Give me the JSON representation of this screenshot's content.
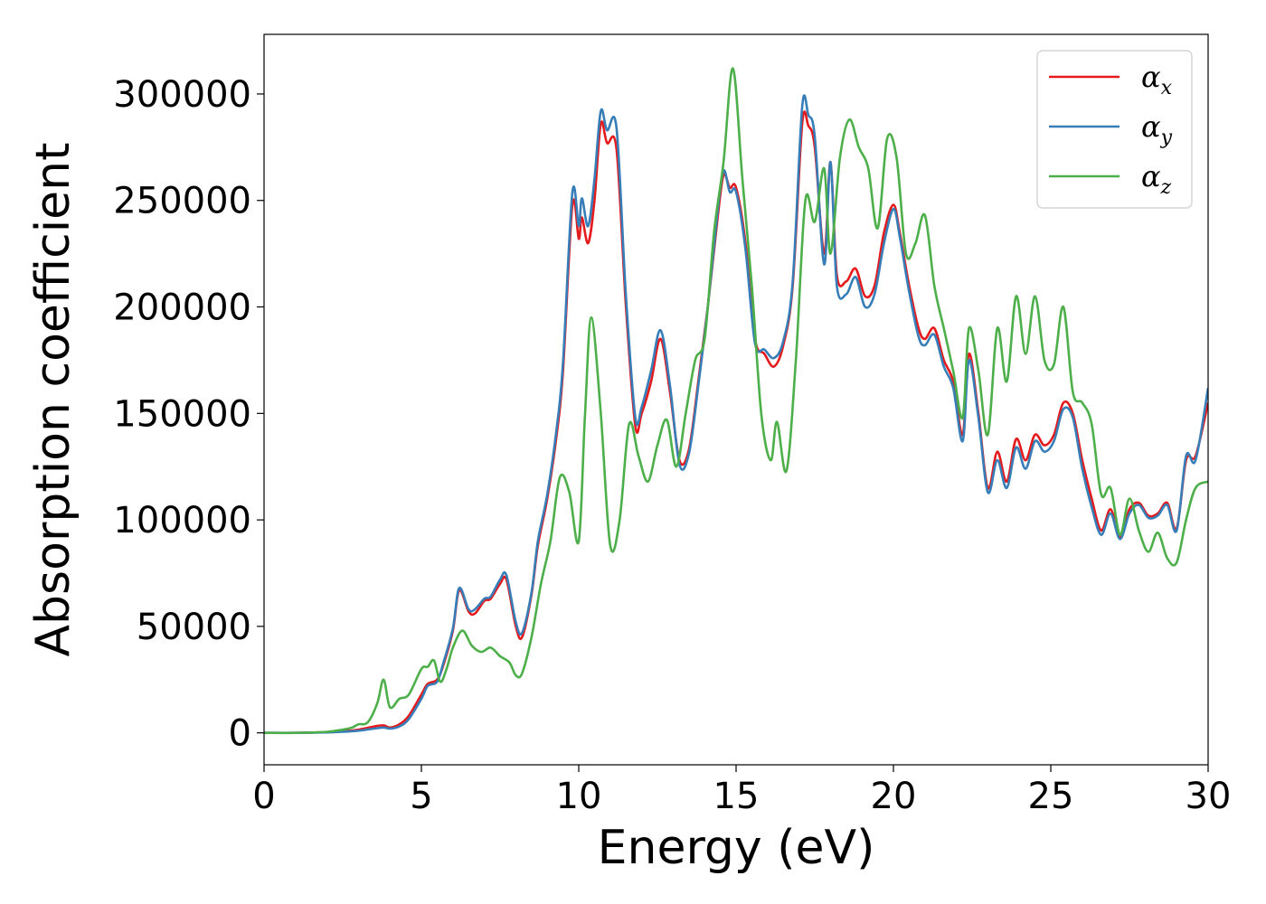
{
  "chart_data": {
    "type": "line",
    "title": "",
    "xlabel": "Energy (eV)",
    "ylabel": "Absorption coefficient",
    "xlim": [
      0,
      30
    ],
    "ylim": [
      -15000,
      328000
    ],
    "xticks": [
      0,
      5,
      10,
      15,
      20,
      25,
      30
    ],
    "yticks": [
      0,
      50000,
      100000,
      150000,
      200000,
      250000,
      300000
    ],
    "grid": false,
    "legend_position": "top-right",
    "series": [
      {
        "name": "α",
        "subscript": "x",
        "color": "#e41a1c",
        "x": [
          0,
          1,
          2,
          2.5,
          3,
          3.5,
          3.8,
          4,
          4.3,
          4.6,
          5,
          5.2,
          5.5,
          5.7,
          6,
          6.2,
          6.5,
          6.7,
          7,
          7.2,
          7.5,
          7.7,
          8,
          8.2,
          8.5,
          8.7,
          9,
          9.3,
          9.5,
          9.8,
          10,
          10.1,
          10.3,
          10.5,
          10.7,
          10.9,
          11.2,
          11.5,
          11.8,
          12,
          12.3,
          12.6,
          12.9,
          13.2,
          13.5,
          13.8,
          14.1,
          14.4,
          14.6,
          14.8,
          15,
          15.3,
          15.6,
          15.9,
          16.2,
          16.5,
          16.8,
          17.1,
          17.3,
          17.5,
          17.8,
          18,
          18.2,
          18.5,
          18.8,
          19.1,
          19.4,
          19.7,
          20,
          20.2,
          20.5,
          20.8,
          21,
          21.3,
          21.6,
          21.9,
          22.2,
          22.4,
          22.7,
          23,
          23.3,
          23.6,
          23.9,
          24.2,
          24.5,
          24.8,
          25.1,
          25.4,
          25.7,
          26,
          26.3,
          26.6,
          26.9,
          27.2,
          27.5,
          27.8,
          28.1,
          28.4,
          28.7,
          29,
          29.3,
          29.6,
          30
        ],
        "y": [
          0,
          0,
          300,
          700,
          1500,
          3000,
          3500,
          2500,
          4000,
          8000,
          18000,
          23000,
          25000,
          32000,
          48000,
          67000,
          57000,
          56000,
          62000,
          63000,
          70000,
          72000,
          50000,
          45000,
          65000,
          88000,
          110000,
          140000,
          170000,
          248000,
          232000,
          242000,
          230000,
          250000,
          286000,
          277000,
          274000,
          200000,
          144000,
          150000,
          165000,
          185000,
          160000,
          128000,
          133000,
          165000,
          200000,
          240000,
          262000,
          256000,
          256000,
          230000,
          185000,
          178000,
          172000,
          182000,
          210000,
          286000,
          285000,
          275000,
          225000,
          268000,
          215000,
          212000,
          218000,
          205000,
          210000,
          235000,
          248000,
          235000,
          210000,
          190000,
          185000,
          190000,
          175000,
          165000,
          140000,
          178000,
          150000,
          115000,
          132000,
          118000,
          138000,
          128000,
          140000,
          135000,
          140000,
          155000,
          150000,
          128000,
          110000,
          95000,
          105000,
          92000,
          105000,
          108000,
          102000,
          103000,
          108000,
          96000,
          128000,
          130000,
          155000
        ]
      },
      {
        "name": "α",
        "subscript": "y",
        "color": "#377eb8",
        "x": [
          0,
          1,
          2,
          2.5,
          3,
          3.5,
          3.8,
          4,
          4.3,
          4.6,
          5,
          5.2,
          5.5,
          5.7,
          6,
          6.2,
          6.5,
          6.7,
          7,
          7.2,
          7.5,
          7.7,
          8,
          8.2,
          8.5,
          8.7,
          9,
          9.3,
          9.5,
          9.8,
          10,
          10.1,
          10.3,
          10.5,
          10.7,
          10.9,
          11.2,
          11.5,
          11.8,
          12,
          12.3,
          12.6,
          12.9,
          13.2,
          13.5,
          13.8,
          14.1,
          14.4,
          14.6,
          14.8,
          15,
          15.3,
          15.6,
          15.9,
          16.2,
          16.5,
          16.8,
          17.1,
          17.3,
          17.5,
          17.8,
          18,
          18.2,
          18.5,
          18.8,
          19.1,
          19.4,
          19.7,
          20,
          20.2,
          20.5,
          20.8,
          21,
          21.3,
          21.6,
          21.9,
          22.2,
          22.4,
          22.7,
          23,
          23.3,
          23.6,
          23.9,
          24.2,
          24.5,
          24.8,
          25.1,
          25.4,
          25.7,
          26,
          26.3,
          26.6,
          26.9,
          27.2,
          27.5,
          27.8,
          28.1,
          28.4,
          28.7,
          29,
          29.3,
          29.6,
          30
        ],
        "y": [
          0,
          0,
          200,
          500,
          1000,
          2000,
          2500,
          2000,
          3000,
          6500,
          16000,
          22000,
          24000,
          33000,
          49000,
          68000,
          58000,
          58000,
          63000,
          64000,
          72000,
          74000,
          52000,
          47000,
          66000,
          90000,
          112000,
          143000,
          174000,
          254000,
          238000,
          251000,
          238000,
          260000,
          292000,
          283000,
          284000,
          205000,
          148000,
          153000,
          170000,
          189000,
          163000,
          126000,
          131000,
          163000,
          200000,
          243000,
          264000,
          254000,
          254000,
          227000,
          183000,
          180000,
          176000,
          184000,
          212000,
          294000,
          290000,
          280000,
          220000,
          268000,
          210000,
          206000,
          214000,
          200000,
          206000,
          230000,
          246000,
          233000,
          207000,
          186000,
          182000,
          187000,
          172000,
          162000,
          137000,
          175000,
          148000,
          113000,
          128000,
          115000,
          134000,
          124000,
          137000,
          132000,
          137000,
          152000,
          148000,
          124000,
          106000,
          93000,
          103000,
          91000,
          103000,
          107000,
          101000,
          102000,
          107000,
          95000,
          130000,
          128000,
          162000
        ]
      },
      {
        "name": "α",
        "subscript": "z",
        "color": "#4daf4a",
        "x": [
          0,
          1,
          2,
          2.5,
          2.8,
          3,
          3.3,
          3.6,
          3.8,
          4,
          4.3,
          4.6,
          5,
          5.2,
          5.4,
          5.6,
          5.8,
          6,
          6.3,
          6.6,
          6.9,
          7.2,
          7.5,
          7.8,
          8,
          8.2,
          8.5,
          8.8,
          9.1,
          9.4,
          9.7,
          10,
          10.2,
          10.4,
          10.7,
          11,
          11.3,
          11.6,
          11.9,
          12.2,
          12.5,
          12.8,
          13.1,
          13.4,
          13.7,
          14,
          14.3,
          14.6,
          14.9,
          15.2,
          15.5,
          15.8,
          16.1,
          16.3,
          16.6,
          16.9,
          17.2,
          17.5,
          17.8,
          18.0,
          18.3,
          18.6,
          18.9,
          19.2,
          19.5,
          19.8,
          20.1,
          20.4,
          20.7,
          21,
          21.3,
          21.6,
          21.9,
          22.2,
          22.4,
          22.7,
          23,
          23.3,
          23.6,
          23.9,
          24.2,
          24.5,
          24.8,
          25.1,
          25.4,
          25.7,
          26,
          26.3,
          26.6,
          26.9,
          27.2,
          27.5,
          27.8,
          28.1,
          28.4,
          28.7,
          29,
          29.3,
          29.6,
          30
        ],
        "y": [
          0,
          0,
          500,
          1500,
          2500,
          4000,
          5000,
          14000,
          25000,
          12000,
          16000,
          18000,
          30000,
          31000,
          34000,
          24000,
          30000,
          40000,
          48000,
          41000,
          38000,
          40000,
          36000,
          33000,
          27000,
          28000,
          45000,
          70000,
          90000,
          120000,
          113000,
          90000,
          150000,
          195000,
          150000,
          88000,
          100000,
          145000,
          130000,
          118000,
          135000,
          147000,
          125000,
          150000,
          175000,
          185000,
          235000,
          268000,
          312000,
          260000,
          210000,
          150000,
          128000,
          146000,
          123000,
          175000,
          250000,
          240000,
          265000,
          225000,
          270000,
          288000,
          275000,
          265000,
          237000,
          279000,
          270000,
          225000,
          230000,
          243000,
          210000,
          190000,
          170000,
          148000,
          190000,
          170000,
          140000,
          190000,
          165000,
          205000,
          178000,
          205000,
          175000,
          173000,
          200000,
          160000,
          155000,
          145000,
          112000,
          115000,
          93000,
          110000,
          95000,
          85000,
          94000,
          82000,
          80000,
          100000,
          115000,
          118000
        ]
      }
    ]
  }
}
